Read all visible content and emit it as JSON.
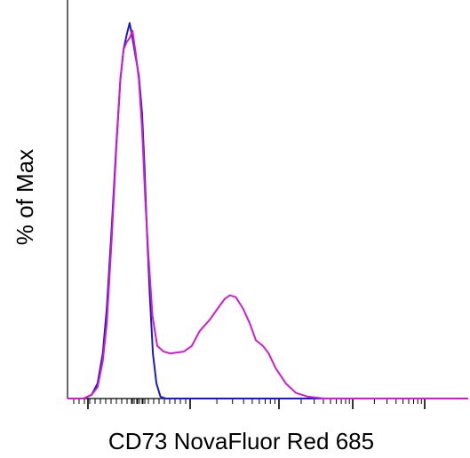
{
  "chart_data": {
    "type": "line",
    "title": "",
    "xlabel": "CD73 NovaFluor Red 685",
    "ylabel": "% of Max",
    "x_scale": "logicle",
    "xlim": [
      0,
      1
    ],
    "ylim": [
      0,
      100
    ],
    "grid": false,
    "legend": "none",
    "series": [
      {
        "color": "#1a1acd",
        "points": [
          [
            0.0,
            0
          ],
          [
            0.04,
            0
          ],
          [
            0.06,
            1
          ],
          [
            0.075,
            4
          ],
          [
            0.088,
            12
          ],
          [
            0.098,
            24
          ],
          [
            0.11,
            45
          ],
          [
            0.122,
            68
          ],
          [
            0.132,
            85
          ],
          [
            0.14,
            93
          ],
          [
            0.148,
            97
          ],
          [
            0.155,
            100
          ],
          [
            0.162,
            96
          ],
          [
            0.17,
            91
          ],
          [
            0.178,
            86
          ],
          [
            0.186,
            76
          ],
          [
            0.192,
            62
          ],
          [
            0.198,
            45
          ],
          [
            0.205,
            28
          ],
          [
            0.213,
            12
          ],
          [
            0.222,
            4
          ],
          [
            0.232,
            0.5
          ],
          [
            0.245,
            0
          ],
          [
            1.0,
            0
          ]
        ]
      },
      {
        "color": "#d21bd2",
        "points": [
          [
            0.0,
            0
          ],
          [
            0.04,
            0
          ],
          [
            0.06,
            1
          ],
          [
            0.075,
            3
          ],
          [
            0.088,
            10
          ],
          [
            0.098,
            20
          ],
          [
            0.11,
            42
          ],
          [
            0.122,
            67
          ],
          [
            0.132,
            85
          ],
          [
            0.14,
            93
          ],
          [
            0.148,
            95
          ],
          [
            0.155,
            96
          ],
          [
            0.162,
            98
          ],
          [
            0.17,
            92
          ],
          [
            0.178,
            85
          ],
          [
            0.186,
            72
          ],
          [
            0.194,
            53
          ],
          [
            0.202,
            38
          ],
          [
            0.212,
            22
          ],
          [
            0.224,
            14
          ],
          [
            0.24,
            12.5
          ],
          [
            0.256,
            12
          ],
          [
            0.27,
            12.2
          ],
          [
            0.29,
            12.5
          ],
          [
            0.31,
            14
          ],
          [
            0.33,
            18
          ],
          [
            0.355,
            21
          ],
          [
            0.375,
            24
          ],
          [
            0.392,
            26.5
          ],
          [
            0.405,
            27.5
          ],
          [
            0.42,
            27
          ],
          [
            0.438,
            24
          ],
          [
            0.455,
            20
          ],
          [
            0.47,
            15.5
          ],
          [
            0.488,
            14
          ],
          [
            0.502,
            12
          ],
          [
            0.52,
            8
          ],
          [
            0.545,
            4
          ],
          [
            0.57,
            1.5
          ],
          [
            0.6,
            0.5
          ],
          [
            0.64,
            0
          ],
          [
            1.0,
            0
          ]
        ]
      }
    ]
  }
}
